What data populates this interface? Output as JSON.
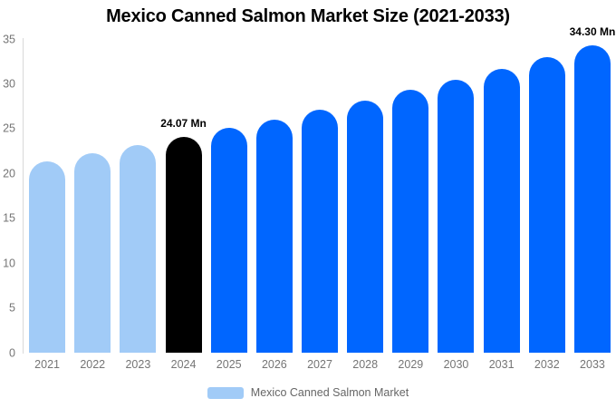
{
  "chart_data": {
    "type": "bar",
    "title": "Mexico Canned Salmon Market Size (2021-2033)",
    "categories": [
      "2021",
      "2022",
      "2023",
      "2024",
      "2025",
      "2026",
      "2027",
      "2028",
      "2029",
      "2030",
      "2031",
      "2032",
      "2033"
    ],
    "values": [
      21.39,
      22.25,
      23.14,
      24.07,
      25.04,
      26.04,
      27.08,
      28.17,
      29.3,
      30.47,
      31.69,
      32.96,
      34.3
    ],
    "unit": "Mn",
    "ylim": [
      0,
      35
    ],
    "yticks": [
      0,
      5,
      10,
      15,
      20,
      25,
      30,
      35
    ],
    "xlabel": "",
    "ylabel": "",
    "grid": false,
    "legend_position": "bottom",
    "bar_colors": [
      "#A1CBF7",
      "#A1CBF7",
      "#A1CBF7",
      "#000000",
      "#0066FF",
      "#0066FF",
      "#0066FF",
      "#0066FF",
      "#0066FF",
      "#0066FF",
      "#0066FF",
      "#0066FF",
      "#0066FF"
    ],
    "point_labels": {
      "2024": "24.07 Mn",
      "2033": "34.30 Mn"
    },
    "palette": {
      "historical": "#A1CBF7",
      "current_highlight": "#000000",
      "forecast": "#0066FF"
    },
    "text_colors": {
      "axis_labels": "#757575",
      "legend": "#666666",
      "annotations": "#000000",
      "title": "#000000"
    }
  },
  "legend": {
    "label": "Mexico Canned Salmon Market",
    "swatch_color": "#A1CBF7"
  }
}
